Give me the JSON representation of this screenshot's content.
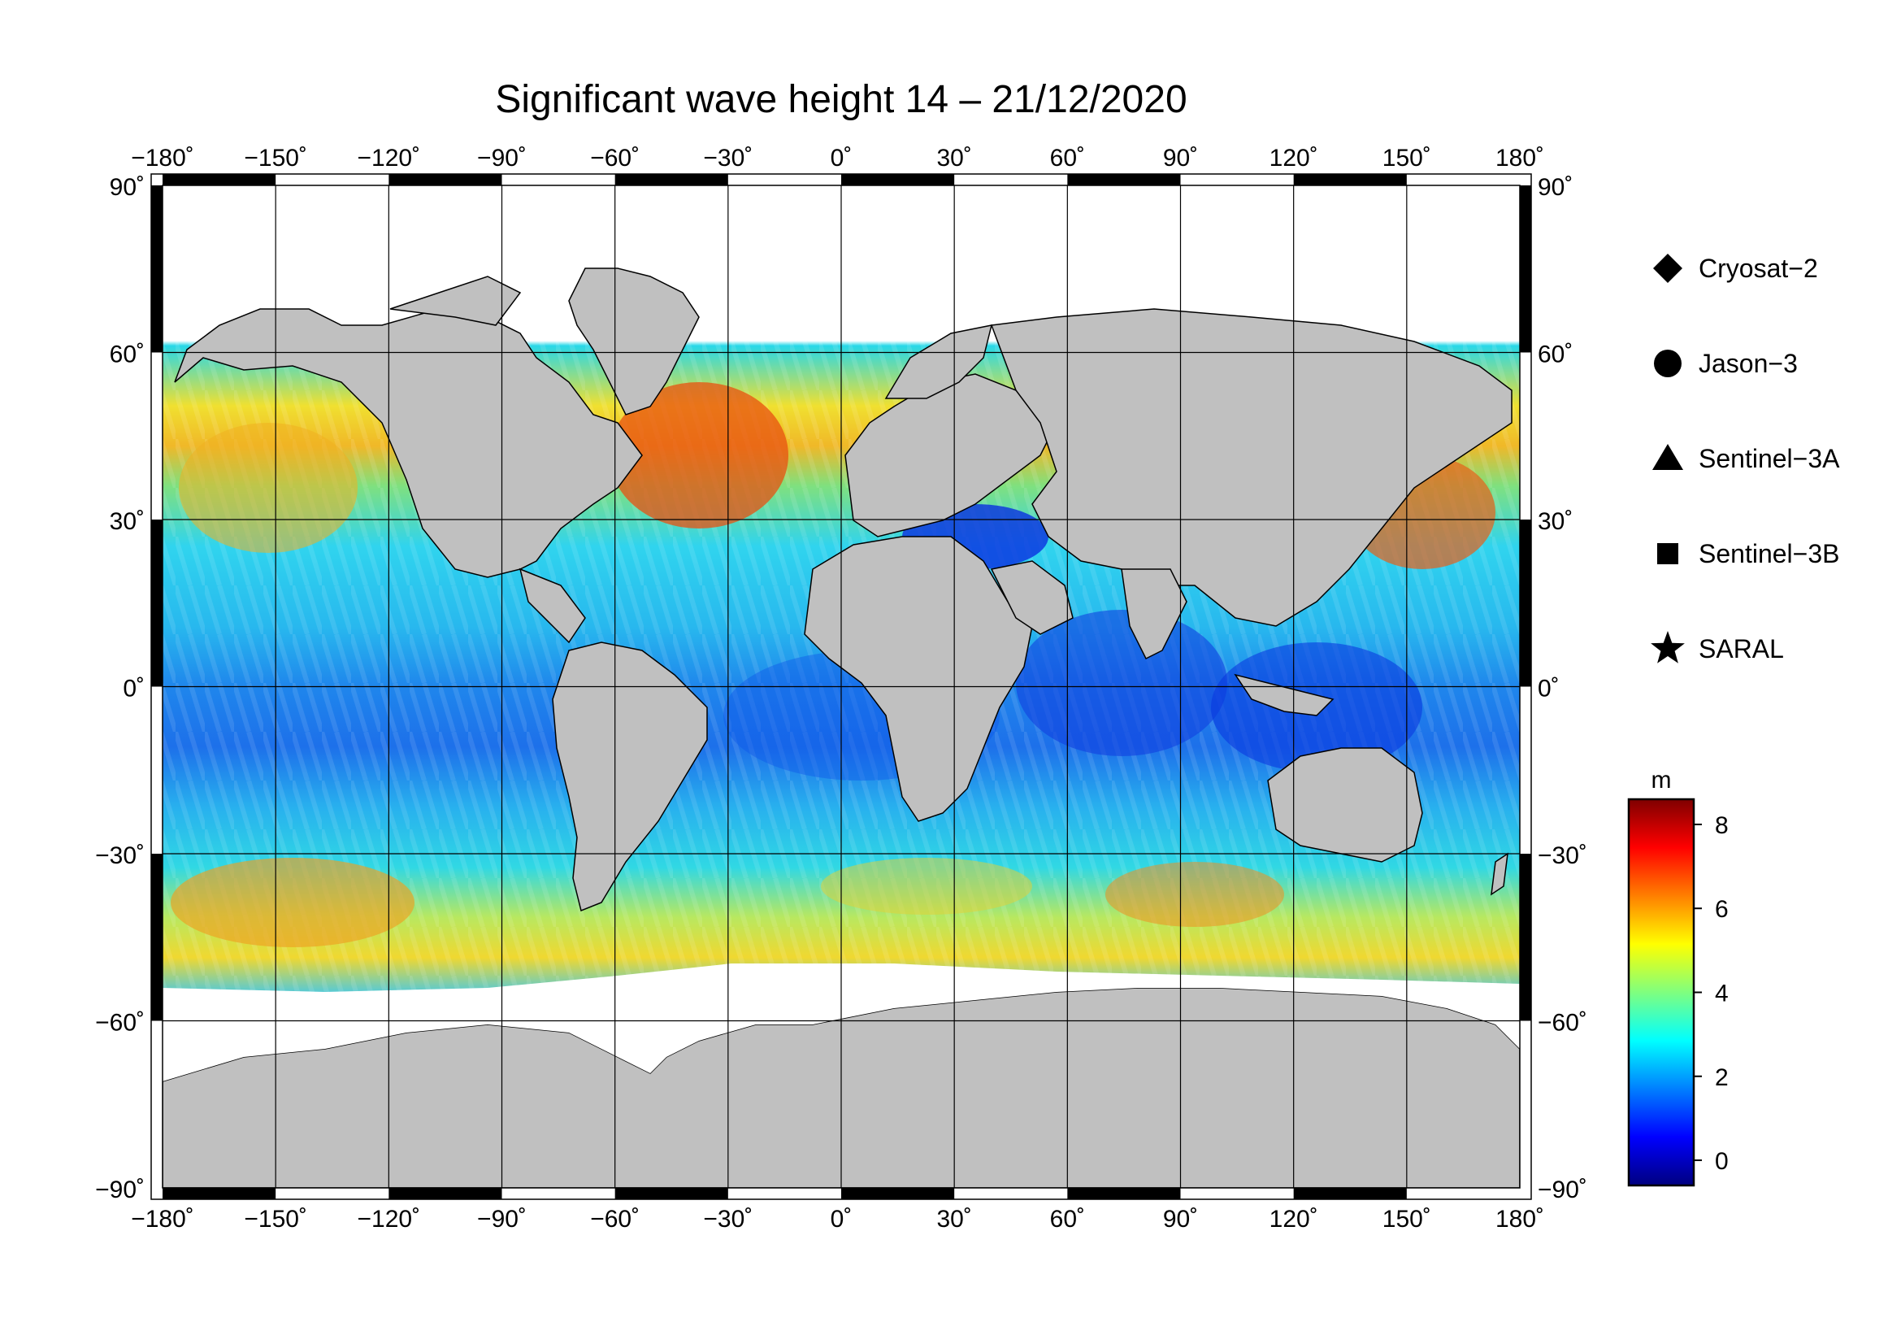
{
  "title": "Significant wave height 14 – 21/12/2020",
  "lon_ticks": [
    {
      "value": -180,
      "label": "−180˚"
    },
    {
      "value": -150,
      "label": "−150˚"
    },
    {
      "value": -120,
      "label": "−120˚"
    },
    {
      "value": -90,
      "label": "−90˚"
    },
    {
      "value": -60,
      "label": "−60˚"
    },
    {
      "value": -30,
      "label": "−30˚"
    },
    {
      "value": 0,
      "label": "0˚"
    },
    {
      "value": 30,
      "label": "30˚"
    },
    {
      "value": 60,
      "label": "60˚"
    },
    {
      "value": 90,
      "label": "90˚"
    },
    {
      "value": 120,
      "label": "120˚"
    },
    {
      "value": 150,
      "label": "150˚"
    },
    {
      "value": 180,
      "label": "180˚"
    }
  ],
  "lat_ticks": [
    {
      "value": 90,
      "label": "90˚"
    },
    {
      "value": 60,
      "label": "60˚"
    },
    {
      "value": 30,
      "label": "30˚"
    },
    {
      "value": 0,
      "label": "0˚"
    },
    {
      "value": -30,
      "label": "−30˚"
    },
    {
      "value": -60,
      "label": "−60˚"
    },
    {
      "value": -90,
      "label": "−90˚"
    }
  ],
  "legend": [
    {
      "name": "Cryosat−2",
      "marker": "diamond"
    },
    {
      "name": "Jason−3",
      "marker": "circle"
    },
    {
      "name": "Sentinel−3A",
      "marker": "triangle"
    },
    {
      "name": "Sentinel−3B",
      "marker": "square"
    },
    {
      "name": "SARAL",
      "marker": "star"
    }
  ],
  "colorbar": {
    "unit": "m",
    "min": -0.6,
    "max": 8.6,
    "ticks": [
      {
        "value": 0,
        "label": "0"
      },
      {
        "value": 2,
        "label": "2"
      },
      {
        "value": 4,
        "label": "4"
      },
      {
        "value": 6,
        "label": "6"
      },
      {
        "value": 8,
        "label": "8"
      }
    ],
    "colors": [
      "#00007f",
      "#0000ff",
      "#007fff",
      "#00ffff",
      "#7fff7f",
      "#ffff00",
      "#ff7f00",
      "#ff0000",
      "#7f0000"
    ]
  },
  "colors": {
    "ocean_low": "#0a2ee6",
    "ocean_mid": "#22c8ee",
    "ocean_high": "#e84a10",
    "land": "#c0c0c0",
    "ice": "#ffffff"
  }
}
